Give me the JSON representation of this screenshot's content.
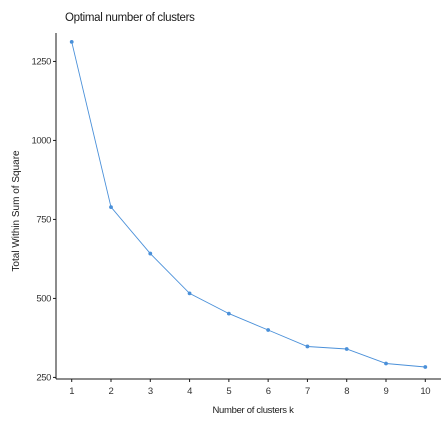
{
  "chart_data": {
    "type": "line",
    "title": "Optimal number of clusters",
    "xlabel": "Number of clusters k",
    "ylabel": "Total Within Sum of Square",
    "x": [
      1,
      2,
      3,
      4,
      5,
      6,
      7,
      8,
      9,
      10
    ],
    "series": [
      {
        "values": [
          1312,
          789,
          642,
          516,
          452,
          400,
          348,
          340,
          294,
          283
        ]
      }
    ],
    "xlim": [
      0.6,
      10.4
    ],
    "ylim": [
      245,
      1340
    ],
    "yticks": [
      250,
      500,
      750,
      1000,
      1250
    ],
    "xticks": [
      1,
      2,
      3,
      4,
      5,
      6,
      7,
      8,
      9,
      10
    ],
    "grid": false,
    "legend": "none",
    "colors": {
      "series": "#4a90d9",
      "axis": "#1a1a1a"
    }
  }
}
